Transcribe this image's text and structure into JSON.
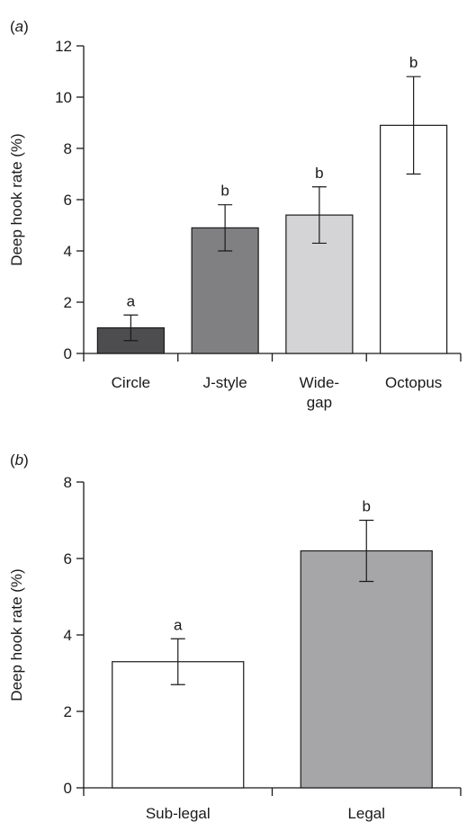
{
  "chart_data": [
    {
      "panel_label": "a",
      "type": "bar",
      "xlabel": "",
      "ylabel": "Deep hook rate (%)",
      "ylim": [
        0,
        12
      ],
      "yticks": [
        0,
        2,
        4,
        6,
        8,
        10,
        12
      ],
      "categories": [
        "Circle",
        "J-style",
        "Wide-gap",
        "Octopus"
      ],
      "category_lines": [
        [
          "Circle"
        ],
        [
          "J-style"
        ],
        [
          "Wide-",
          "gap"
        ],
        [
          "Octopus"
        ]
      ],
      "values": [
        1.0,
        4.9,
        5.4,
        8.9
      ],
      "error_low": [
        0.5,
        4.0,
        4.3,
        7.0
      ],
      "error_high": [
        1.5,
        5.8,
        6.5,
        10.8
      ],
      "significance": [
        "a",
        "b",
        "b",
        "b"
      ],
      "bar_colors": [
        "#4d4d4f",
        "#808083",
        "#d4d4d6",
        "#ffffff"
      ],
      "grid": false
    },
    {
      "panel_label": "b",
      "type": "bar",
      "xlabel": "",
      "ylabel": "Deep hook rate (%)",
      "ylim": [
        0,
        8
      ],
      "yticks": [
        0,
        2,
        4,
        6,
        8
      ],
      "categories": [
        "Sub-legal",
        "Legal"
      ],
      "category_lines": [
        [
          "Sub-legal"
        ],
        [
          "Legal"
        ]
      ],
      "values": [
        3.3,
        6.2
      ],
      "error_low": [
        2.7,
        5.4
      ],
      "error_high": [
        3.9,
        7.0
      ],
      "significance": [
        "a",
        "b"
      ],
      "bar_colors": [
        "#ffffff",
        "#a6a6a8"
      ],
      "grid": false
    }
  ]
}
